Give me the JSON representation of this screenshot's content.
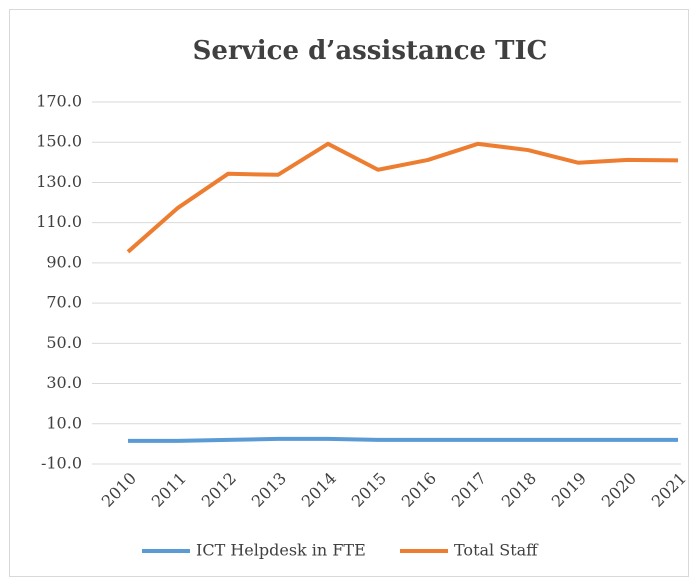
{
  "chart_data": {
    "type": "line",
    "title": "Service d’assistance TIC",
    "categories": [
      "2010",
      "2011",
      "2012",
      "2013",
      "2014",
      "2015",
      "2016",
      "2017",
      "2018",
      "2019",
      "2020",
      "2021"
    ],
    "series": [
      {
        "name": "ICT Helpdesk in FTE",
        "color": "#5b9bd5",
        "values": [
          1.5,
          1.5,
          2,
          2.5,
          2.5,
          2,
          2,
          2,
          2,
          2,
          2,
          2
        ]
      },
      {
        "name": "Total Staff",
        "color": "#ed7d31",
        "values": [
          95.5,
          117.4,
          134.3,
          133.8,
          149.2,
          136.3,
          141.2,
          149.2,
          146.1,
          139.8,
          141.2,
          141
        ]
      }
    ],
    "ylim": [
      -10,
      170
    ],
    "yticks": [
      {
        "value": -10,
        "label": "-10.0"
      },
      {
        "value": 10,
        "label": "10.0"
      },
      {
        "value": 30,
        "label": "30.0"
      },
      {
        "value": 50,
        "label": "50.0"
      },
      {
        "value": 70,
        "label": "70.0"
      },
      {
        "value": 90,
        "label": "90.0"
      },
      {
        "value": 110,
        "label": "110.0"
      },
      {
        "value": 130,
        "label": "130.0"
      },
      {
        "value": 150,
        "label": "150.0"
      },
      {
        "value": 170,
        "label": "170.0"
      }
    ],
    "grid": true,
    "legend": "bottom"
  }
}
